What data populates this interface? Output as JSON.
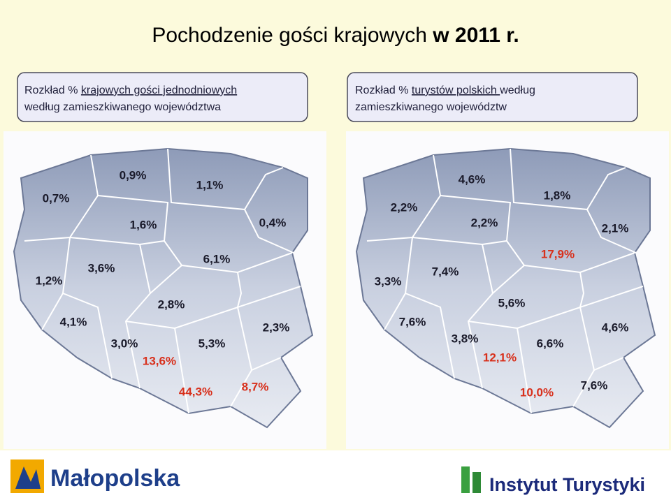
{
  "header": {
    "title_main": "Pochodzenie gości krajowych",
    "title_year": "w 2011 r."
  },
  "boxes": [
    {
      "line1_a": "Rozkład % ",
      "line1_b": "krajowych gości jednodniowych",
      "line2": "według zamieszkiwanego województwa"
    },
    {
      "line1_a": "Rozkład % ",
      "line1_b": "turystów polskich ",
      "line1_c": "według",
      "line2": "zamieszkiwanego województw"
    }
  ],
  "maps": [
    {
      "labels": [
        "0,7%",
        "0,9%",
        "1,1%",
        "1,6%",
        "0,4%",
        "1,2%",
        "3,6%",
        "6,1%",
        "4,1%",
        "2,8%",
        "2,3%",
        "3,0%",
        "5,3%",
        "13,6%",
        "44,3%",
        "8,7%"
      ]
    },
    {
      "labels": [
        "4,6%",
        "1,8%",
        "2,2%",
        "2,2%",
        "2,1%",
        "17,9%",
        "3,3%",
        "7,4%",
        "5,6%",
        "7,6%",
        "4,6%",
        "3,8%",
        "6,6%",
        "12,1%",
        "10,0%",
        "7,6%"
      ]
    }
  ],
  "footer": {
    "left_logo": "Małopolska",
    "right_logo": "Instytut Turystyki"
  }
}
